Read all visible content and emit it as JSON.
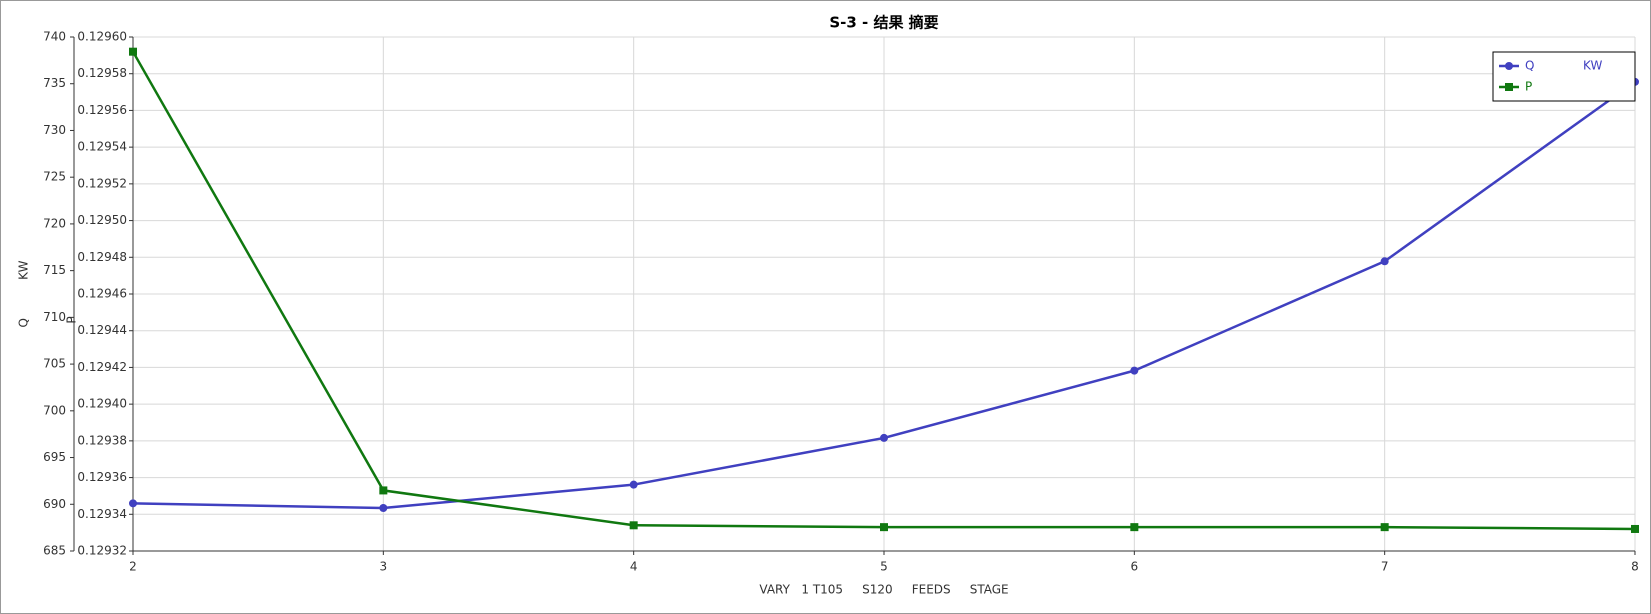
{
  "chart_data": {
    "type": "line",
    "title": "S-3 - 结果 摘要",
    "xlabel": "VARY   1 T105     S120     FEEDS     STAGE",
    "ylabel": "Q          KW",
    "y2label": "P",
    "x": [
      2,
      3,
      4,
      5,
      6,
      7,
      8
    ],
    "xlim": [
      2,
      8
    ],
    "xticks": [
      2,
      3,
      4,
      5,
      6,
      7,
      8
    ],
    "ylim": [
      685,
      740
    ],
    "yticks": [
      685,
      690,
      695,
      700,
      705,
      710,
      715,
      720,
      725,
      730,
      735,
      740
    ],
    "y2lim": [
      0.12932,
      0.1296
    ],
    "y2ticks": [
      0.12932,
      0.12934,
      0.12936,
      0.12938,
      {
        "value": 0.1294,
        "label": "0.12940"
      },
      0.12942,
      0.12944,
      0.12946,
      0.12948,
      {
        "value": 0.1295,
        "label": "0.12950"
      },
      0.12952,
      0.12954,
      0.12956,
      0.12958,
      {
        "value": 0.1296,
        "label": "0.12960"
      }
    ],
    "grid": true,
    "legend": "upper right",
    "series": [
      {
        "name": "Q",
        "unit": "KW",
        "color": "#4040c0",
        "marker": "circle",
        "values": [
          690.1,
          689.6,
          692.1,
          697.1,
          704.3,
          716.0,
          735.2
        ]
      },
      {
        "name": "P",
        "color": "#107810",
        "marker": "square",
        "axis": "y2",
        "values": [
          0.129592,
          0.129353,
          0.129334,
          0.129333,
          0.129333,
          0.129333,
          0.129332
        ]
      }
    ]
  }
}
